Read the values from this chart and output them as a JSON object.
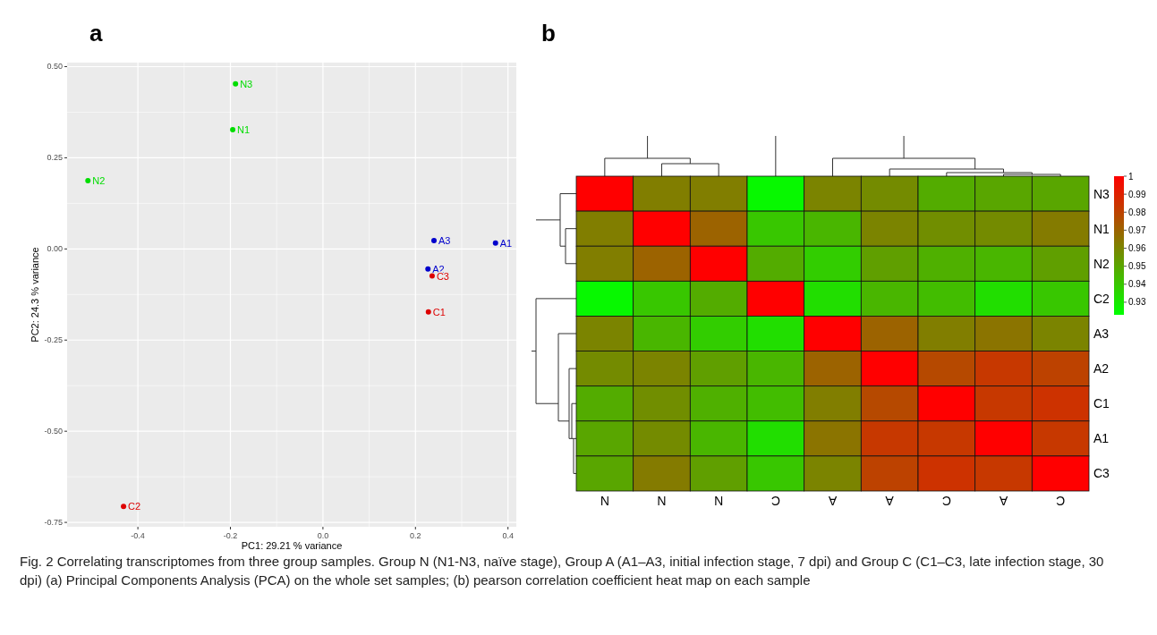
{
  "chart_data": [
    {
      "type": "scatter",
      "title": "a",
      "xlabel": "PC1:  29.21 % variance",
      "ylabel": "PC2:  24.3 % variance",
      "xlim": [
        -0.553,
        0.418
      ],
      "ylim": [
        -0.762,
        0.511
      ],
      "xticks": [
        {
          "value": -0.4,
          "label": "-0.4"
        },
        {
          "value": -0.2,
          "label": "-0.2"
        },
        {
          "value": 0,
          "label": "0.0"
        },
        {
          "value": 0.2,
          "label": "0.2"
        },
        {
          "value": 0.4,
          "label": "0.4"
        }
      ],
      "yticks": [
        {
          "value": -0.75,
          "label": "-0.75"
        },
        {
          "value": -0.5,
          "label": "-0.50"
        },
        {
          "value": -0.25,
          "label": "-0.25"
        },
        {
          "value": 0,
          "label": "0.00"
        },
        {
          "value": 0.25,
          "label": "0.25"
        },
        {
          "value": 0.5,
          "label": "0.50"
        }
      ],
      "grid": true,
      "marker": "circle",
      "series": [
        {
          "color": "#00dd00",
          "x": [
            -0.189,
            -0.195,
            -0.508
          ],
          "values": [
            0.453,
            0.327,
            0.187
          ]
        },
        {
          "color": "#0000cc",
          "x": [
            0.24,
            0.373,
            0.227
          ],
          "values": [
            0.023,
            0.016,
            -0.055
          ]
        },
        {
          "color": "#dd0000",
          "x": [
            0.236,
            0.228,
            -0.431
          ],
          "values": [
            -0.074,
            -0.173,
            -0.706
          ]
        }
      ],
      "annotations": [
        {
          "text": "N3",
          "x": -0.189,
          "y": 0.453
        },
        {
          "text": "N1",
          "x": -0.195,
          "y": 0.327
        },
        {
          "text": "N2",
          "x": -0.508,
          "y": 0.187
        },
        {
          "text": "A3",
          "x": 0.24,
          "y": 0.023
        },
        {
          "text": "A1",
          "x": 0.373,
          "y": 0.016
        },
        {
          "text": "A2",
          "x": 0.227,
          "y": -0.055
        },
        {
          "text": "C3",
          "x": 0.236,
          "y": -0.074
        },
        {
          "text": "C1",
          "x": 0.228,
          "y": -0.173
        },
        {
          "text": "C2",
          "x": -0.431,
          "y": -0.706
        },
        "Fig. 2  Correlating transcriptomes from three group samples. Group N (N1-N3, naïve stage), Group A (A1–A3, initial infection stage, 7 dpi) and Group C (C1–C3, late infection stage, 30 dpi) (a) Principal Components Analysis (PCA) on the whole set samples; (b) pearson correlation coefficient heat map on each sample"
      ]
    },
    {
      "type": "heatmap",
      "title": "b",
      "categories": [
        "N",
        "N",
        "N",
        "C",
        "A",
        "A",
        "C",
        "A",
        "C"
      ],
      "y_categories": [
        "N3",
        "N1",
        "N2",
        "C2",
        "A3",
        "A2",
        "C1",
        "A1",
        "C3"
      ],
      "clim": [
        0.923,
        1
      ],
      "cticks": [
        {
          "value": 0.93,
          "label": "0.93"
        },
        {
          "value": 0.94,
          "label": "0.94"
        },
        {
          "value": 0.95,
          "label": "0.95"
        },
        {
          "value": 0.96,
          "label": "0.96"
        },
        {
          "value": 0.97,
          "label": "0.97"
        },
        {
          "value": 0.98,
          "label": "0.98"
        },
        {
          "value": 0.99,
          "label": "0.99"
        },
        1
      ],
      "cells": [
        [
          1,
          0.962,
          0.962,
          0.925,
          0.96,
          0.958,
          0.948,
          0.95,
          0.95
        ],
        [
          0.962,
          1,
          0.97,
          0.94,
          0.945,
          0.96,
          0.957,
          0.958,
          0.963
        ],
        [
          0.962,
          0.97,
          1,
          0.948,
          0.938,
          0.952,
          0.947,
          0.945,
          0.952
        ],
        [
          0.925,
          0.94,
          0.948,
          1,
          0.933,
          0.945,
          0.943,
          0.933,
          0.94
        ],
        [
          0.96,
          0.945,
          0.938,
          0.933,
          1,
          0.97,
          0.962,
          0.965,
          0.96
        ],
        [
          0.958,
          0.96,
          0.952,
          0.945,
          0.97,
          1,
          0.978,
          0.983,
          0.98
        ],
        [
          0.948,
          0.957,
          0.947,
          0.943,
          0.962,
          0.978,
          1,
          0.983,
          0.985
        ],
        [
          0.95,
          0.958,
          0.945,
          0.933,
          0.965,
          0.983,
          0.983,
          1,
          0.983
        ],
        [
          0.95,
          0.963,
          0.952,
          0.94,
          0.96,
          0.98,
          0.985,
          0.983,
          1
        ]
      ]
    }
  ]
}
